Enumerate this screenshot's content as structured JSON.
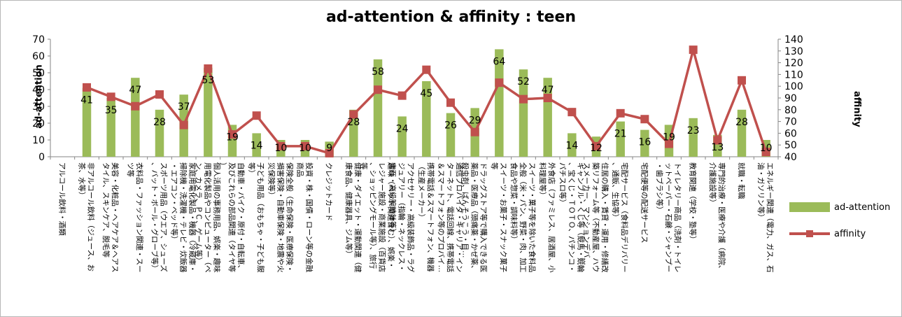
{
  "chart_data": {
    "type": "bar+line",
    "title": "ad-attention & affinity : teen",
    "ylabel_left": "ad-attention",
    "ylabel_right": "affinity",
    "ylim_left": [
      0,
      70
    ],
    "ylim_right": [
      40,
      140
    ],
    "yticks_left": [
      0,
      10,
      20,
      30,
      40,
      50,
      60,
      70
    ],
    "yticks_right": [
      40,
      50,
      60,
      70,
      80,
      90,
      100,
      110,
      120,
      130,
      140
    ],
    "legend_position": "right",
    "categories": [
      "アルコール飲料・酒類",
      "非アルコール飲料（ジュース、お茶、水等）",
      "美容・化粧品・ヘアケア＆ヘアスタイル、スキンケア、脱毛等",
      "衣料品・ファッション関連・スーツ等",
      "スポーツ用品（ウエア、シューズ、バット・ボール・グローブ等）",
      "家庭用電化製品・機器（冷蔵庫・掃除機・洗濯機・テレビ・炊飯器・エアコン・ベッド等）",
      "個人活用の事務用品、娯楽・趣味用電化製品やコンピューター（ペン、カメラ、ＰＣ、ゲーム等）",
      "自動車・バイク・原付・自転車、及びこれらの部品関連（タイヤ等）",
      "子ども用品（おもちゃ・子ども服等）",
      "保険全般（生命保険・医療保険・損害保険・自動車保険・地震や火災保険等）",
      "投資・株・国債・ローン等の金融商品",
      "クレジットカード",
      "健康・ダイエット・運動関連（健康食品、健康器具、ジム等）",
      "趣味（ペット関連含む）、娯楽・レジャー施設・商業施設（百貨店、ショッピングモール等）、旅行等",
      "アクセサリー・高級装飾品・ラグジュアリー（指輪・ネックレス・宝石・高級腕時計等）",
      "携帯電話＆スマートフォン、機器（生産メーカー）",
      "通信プロバイダ・キャリア・インターネット、電話回線、携帯電話＆スマートフォン等のプロバイ…",
      "ドラッグストア等で購入できる医薬品・医療品（頭痛薬・かぜ薬、殺虫剤、ばんそうこう・目…",
      "スイーツ・お菓子・スナック菓子等",
      "スイーツ・菓子等を除いた食料品全般（米・パン、野菜・肉、加工食品や惣菜・調味料等）",
      "外食店（ファミレス、居酒屋、小料理屋等）",
      "ギャンブル・くじ等（競馬・競輪、宝くじ・ＴＯＴＯ、パチンコ・パチスロ等）",
      "住居の購入・賃貸・運用・修繕改築リフォーム等（不動産屋、ハウスメーカー、マンションデバ…",
      "宅配サービス（食料品デリバリー、通販、生協等）",
      "宅配便等の配送サービス",
      "トイレタリー商品（洗剤・トイレットペーパー・石鹸・シャンプー・歯ブラシ等）",
      "教育関連（学校・塾等）",
      "専門的治療・医療や介護（病院、介護施設等）",
      "就職・転職",
      "エネルギー関連（電力、ガス、石油・ガソリン等）"
    ],
    "series": [
      {
        "name": "ad-attention",
        "type": "bar",
        "color": "#9bbb59",
        "values": [
          0,
          41,
          35,
          47,
          28,
          37,
          53,
          19,
          14,
          10,
          10,
          9,
          28,
          58,
          24,
          45,
          26,
          29,
          64,
          52,
          47,
          14,
          12,
          21,
          16,
          19,
          23,
          13,
          28,
          10
        ],
        "data_labels": [
          null,
          "41",
          "35",
          "47",
          "28",
          "37",
          "53",
          "19",
          "14",
          "10",
          "10",
          "9",
          "28",
          "58",
          "24",
          "45",
          "26",
          "29",
          "64",
          "52",
          "47",
          "14",
          "12",
          "21",
          "16",
          "19",
          "23",
          "13",
          "28",
          "10"
        ]
      },
      {
        "name": "affinity",
        "type": "line",
        "color": "#c0504d",
        "values": [
          null,
          99,
          91,
          83,
          93,
          67,
          115,
          59,
          75,
          49,
          49,
          43,
          76,
          97,
          92,
          114,
          86,
          61,
          103,
          89,
          90,
          78,
          49,
          77,
          72,
          51,
          131,
          54,
          105,
          44
        ]
      }
    ]
  }
}
